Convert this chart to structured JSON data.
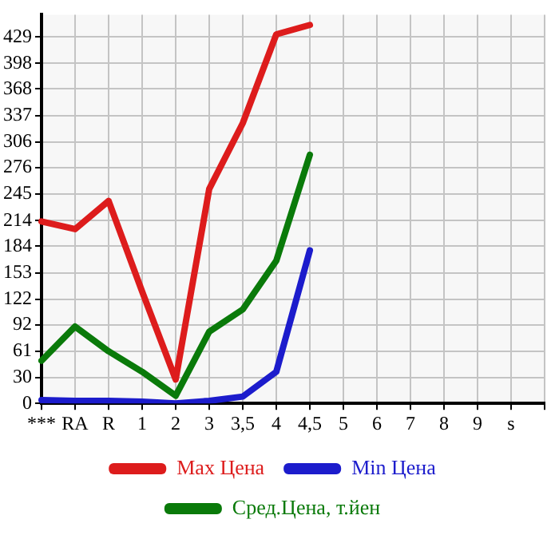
{
  "chart_data": {
    "type": "line",
    "categories": [
      "***",
      "RA",
      "R",
      "1",
      "2",
      "3",
      "3,5",
      "4",
      "4,5",
      "5",
      "6",
      "7",
      "8",
      "9",
      "s",
      null
    ],
    "series": [
      {
        "name": "Max Цена",
        "color": "#dd1c1c",
        "values": [
          213,
          204,
          237,
          131,
          28,
          251,
          328,
          432,
          443,
          null,
          null,
          null,
          null,
          null,
          null,
          null
        ]
      },
      {
        "name": "Min Цена",
        "color": "#1c1ccc",
        "values": [
          4,
          3,
          3,
          2,
          0,
          3,
          8,
          37,
          179,
          null,
          null,
          null,
          null,
          null,
          null,
          null
        ]
      },
      {
        "name": "Сред.Цена, т.йен",
        "color": "#0a7a0a",
        "values": [
          50,
          90,
          61,
          37,
          9,
          84,
          110,
          167,
          291,
          null,
          null,
          null,
          null,
          null,
          null,
          null
        ]
      }
    ],
    "ylim": [
      0,
      455
    ],
    "yticks": [
      0,
      30,
      61,
      92,
      122,
      153,
      184,
      214,
      245,
      276,
      306,
      337,
      368,
      398,
      429
    ],
    "grid": true,
    "legend": "bottom",
    "marker": "none",
    "line_style": "solid"
  }
}
